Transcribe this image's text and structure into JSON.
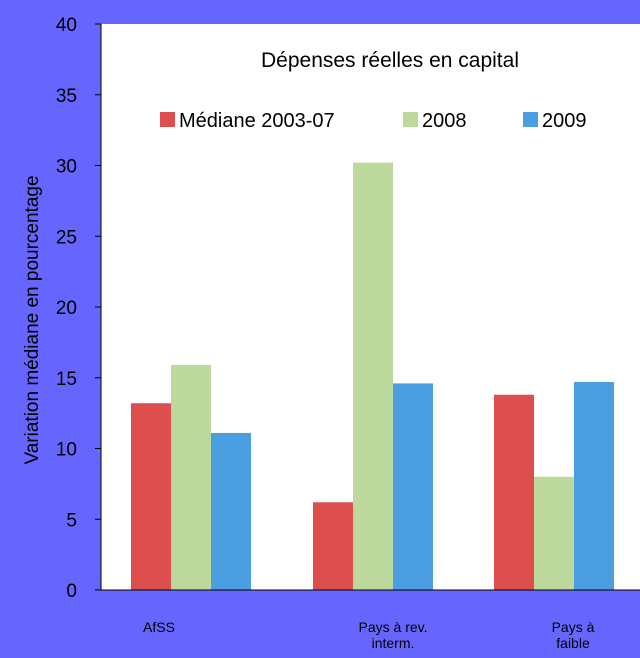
{
  "chart_data": {
    "type": "bar",
    "title": "Dépenses  réelles en capital",
    "ylabel": "Variation médiane en pourcentage",
    "xlabel": "",
    "ylim": [
      0,
      40
    ],
    "yticks": [
      0,
      5,
      10,
      15,
      20,
      25,
      30,
      35,
      40
    ],
    "categories": [
      {
        "lines": [
          "AfSS"
        ]
      },
      {
        "lines": [
          "Pays à rev.",
          "interm."
        ]
      },
      {
        "lines": [
          "Pays à",
          "faible"
        ]
      }
    ],
    "series": [
      {
        "name": "Médiane 2003-07",
        "color": "#de4e4e",
        "values": [
          13.2,
          6.2,
          13.8
        ]
      },
      {
        "name": "2008",
        "color": "#bcd89a",
        "values": [
          15.9,
          30.2,
          8.0
        ]
      },
      {
        "name": "2009",
        "color": "#4b9ee0",
        "values": [
          11.1,
          14.6,
          14.7
        ]
      }
    ],
    "grid": false,
    "legend_placement": "top, inside plot",
    "colors": {
      "page_background": "#6666ff",
      "plot_background": "#ffffff"
    }
  }
}
